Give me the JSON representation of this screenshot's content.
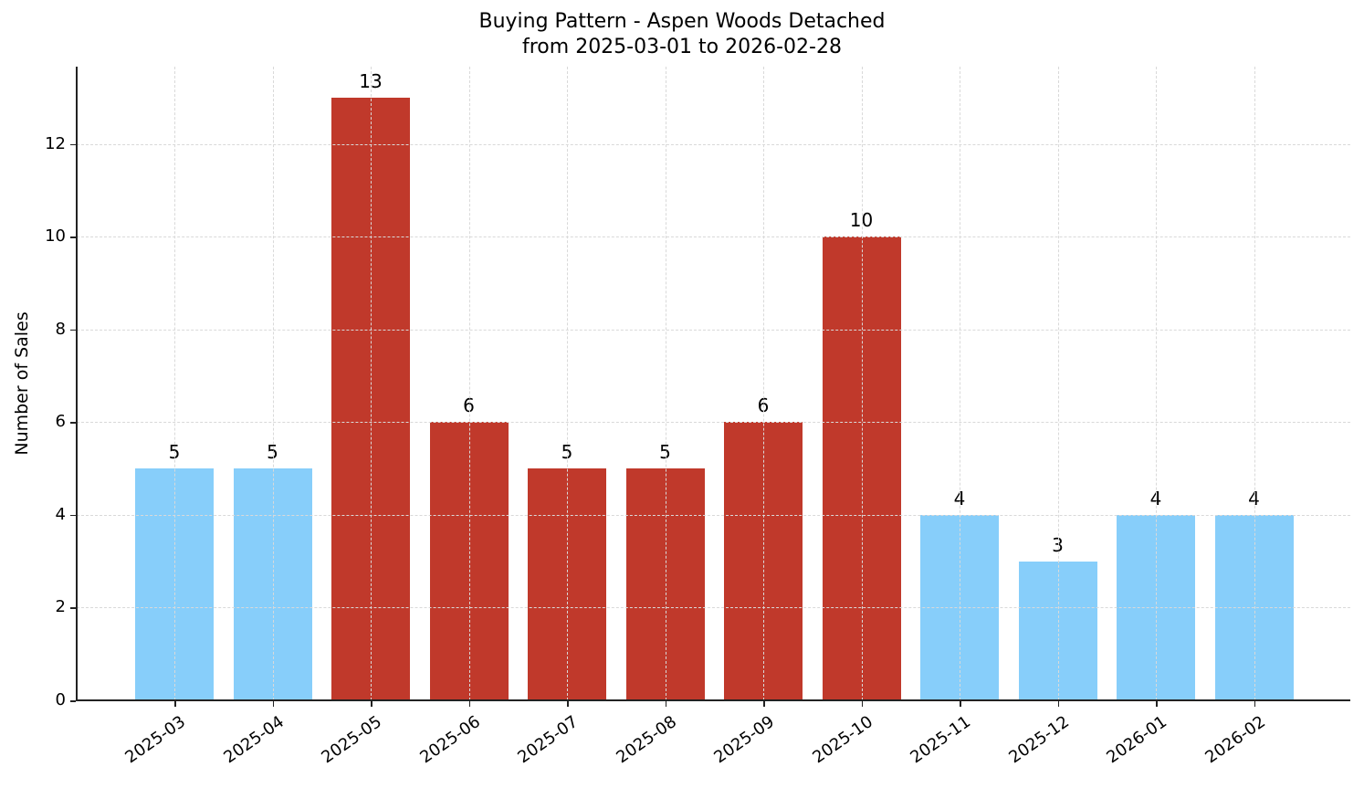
{
  "chart_data": {
    "type": "bar",
    "title": "Buying Pattern - Aspen Woods Detached",
    "subtitle": "from 2025-03-01 to 2026-02-28",
    "xlabel": "",
    "ylabel": "Number of Sales",
    "categories": [
      "2025-03",
      "2025-04",
      "2025-05",
      "2025-06",
      "2025-07",
      "2025-08",
      "2025-09",
      "2025-10",
      "2025-11",
      "2025-12",
      "2026-01",
      "2026-02"
    ],
    "values": [
      5,
      5,
      13,
      6,
      5,
      5,
      6,
      10,
      4,
      3,
      4,
      4
    ],
    "bar_colors": [
      "#87CEFA",
      "#87CEFA",
      "#C0392B",
      "#C0392B",
      "#C0392B",
      "#C0392B",
      "#C0392B",
      "#C0392B",
      "#87CEFA",
      "#87CEFA",
      "#87CEFA",
      "#87CEFA"
    ],
    "ylim": [
      0,
      13.67
    ],
    "yticks": [
      0,
      2,
      4,
      6,
      8,
      10,
      12
    ],
    "grid": true,
    "data_labels": true,
    "legend": null
  },
  "colors": {
    "low": "#87CEFA",
    "high": "#C0392B"
  }
}
